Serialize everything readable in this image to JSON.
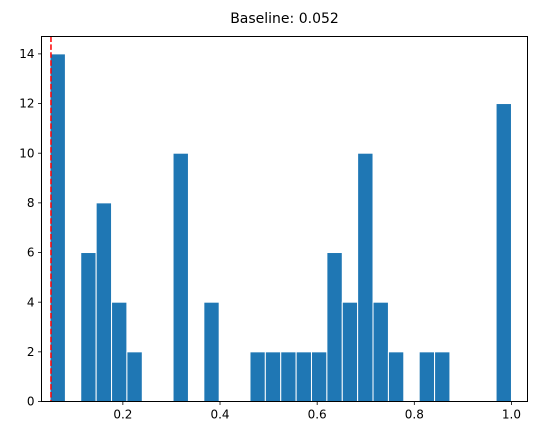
{
  "chart_data": {
    "type": "bar",
    "title": "Baseline: 0.052",
    "xlabel": "",
    "ylabel": "",
    "xlim": [
      0.0325,
      1.033
    ],
    "ylim": [
      0,
      14.7
    ],
    "xticks": [
      0.2,
      0.4,
      0.6,
      0.8,
      1.0
    ],
    "xtick_labels": [
      "0.2",
      "0.4",
      "0.6",
      "0.8",
      "1.0"
    ],
    "yticks": [
      0,
      2,
      4,
      6,
      8,
      10,
      12,
      14
    ],
    "ytick_labels": [
      "0",
      "2",
      "4",
      "6",
      "8",
      "10",
      "12",
      "14"
    ],
    "bin_width": 0.03167,
    "bins": [
      {
        "x0": 0.05,
        "x1": 0.0817,
        "value": 14
      },
      {
        "x0": 0.0817,
        "x1": 0.1133,
        "value": 0
      },
      {
        "x0": 0.1133,
        "x1": 0.145,
        "value": 6
      },
      {
        "x0": 0.145,
        "x1": 0.1767,
        "value": 8
      },
      {
        "x0": 0.1767,
        "x1": 0.2083,
        "value": 4
      },
      {
        "x0": 0.2083,
        "x1": 0.24,
        "value": 2
      },
      {
        "x0": 0.24,
        "x1": 0.2717,
        "value": 0
      },
      {
        "x0": 0.2717,
        "x1": 0.3033,
        "value": 0
      },
      {
        "x0": 0.3033,
        "x1": 0.335,
        "value": 10
      },
      {
        "x0": 0.335,
        "x1": 0.3667,
        "value": 0
      },
      {
        "x0": 0.3667,
        "x1": 0.3983,
        "value": 4
      },
      {
        "x0": 0.3983,
        "x1": 0.43,
        "value": 0
      },
      {
        "x0": 0.43,
        "x1": 0.4617,
        "value": 0
      },
      {
        "x0": 0.4617,
        "x1": 0.4933,
        "value": 2
      },
      {
        "x0": 0.4933,
        "x1": 0.525,
        "value": 2
      },
      {
        "x0": 0.525,
        "x1": 0.5567,
        "value": 2
      },
      {
        "x0": 0.5567,
        "x1": 0.5883,
        "value": 2
      },
      {
        "x0": 0.5883,
        "x1": 0.62,
        "value": 2
      },
      {
        "x0": 0.62,
        "x1": 0.6517,
        "value": 6
      },
      {
        "x0": 0.6517,
        "x1": 0.6833,
        "value": 4
      },
      {
        "x0": 0.6833,
        "x1": 0.715,
        "value": 10
      },
      {
        "x0": 0.715,
        "x1": 0.7467,
        "value": 4
      },
      {
        "x0": 0.7467,
        "x1": 0.7783,
        "value": 2
      },
      {
        "x0": 0.7783,
        "x1": 0.81,
        "value": 0
      },
      {
        "x0": 0.81,
        "x1": 0.8417,
        "value": 2
      },
      {
        "x0": 0.8417,
        "x1": 0.8733,
        "value": 2
      },
      {
        "x0": 0.8733,
        "x1": 0.905,
        "value": 0
      },
      {
        "x0": 0.905,
        "x1": 0.9367,
        "value": 0
      },
      {
        "x0": 0.9367,
        "x1": 0.9683,
        "value": 0
      },
      {
        "x0": 0.9683,
        "x1": 1.0,
        "value": 12
      }
    ],
    "baseline": {
      "value": 0.052,
      "style": "dashed",
      "color": "#ff0000"
    },
    "bar_color": "#1f77b4",
    "bar_edge_color": "#ffffff",
    "grid": false,
    "legend": "none"
  }
}
